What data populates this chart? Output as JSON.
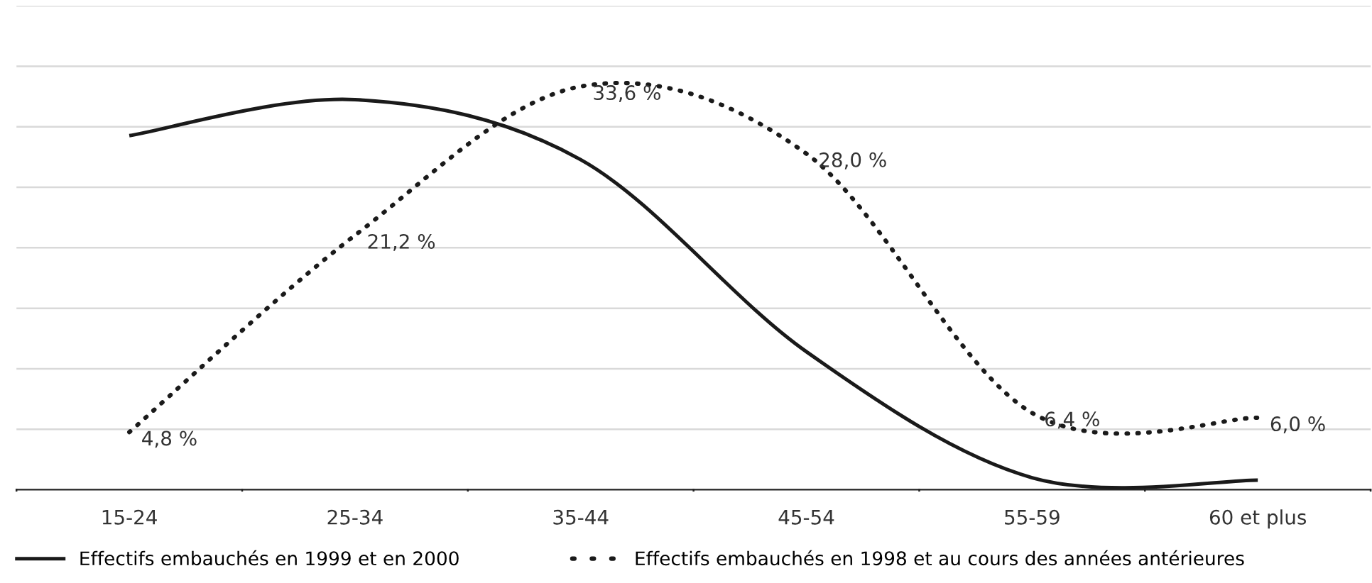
{
  "chart_data": {
    "type": "line",
    "categories": [
      "15-24",
      "25-34",
      "35-44",
      "45-54",
      "55-59",
      "60 et plus"
    ],
    "series": [
      {
        "name": "Effectifs embauchés en 1999 et en 2000",
        "color": "#1a1a1a",
        "line_style": "solid",
        "values": [
          29.5,
          32.5,
          27.5,
          11.5,
          1.0,
          0.8
        ]
      },
      {
        "name": "Effectifs embauchés en 1998 et au cours des années antérieures",
        "color": "#1a1a1a",
        "line_style": "dotted",
        "values": [
          4.8,
          21.2,
          33.6,
          28.0,
          6.4,
          6.0
        ],
        "value_labels": [
          "4,8 %",
          "21,2 %",
          "33,6 %",
          "28,0 %",
          "6,4 %",
          "6,0 %"
        ]
      }
    ],
    "grid": "y",
    "legend": "bottom"
  }
}
